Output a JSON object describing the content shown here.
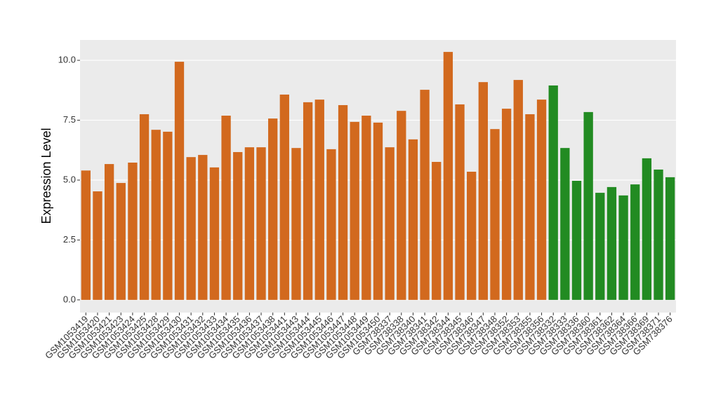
{
  "chart_data": {
    "type": "bar",
    "y_label": "Expression Level",
    "categories": [
      "GSM1053419",
      "GSM1053420",
      "GSM1053421",
      "GSM1053423",
      "GSM1053424",
      "GSM1053425",
      "GSM1053428",
      "GSM1053429",
      "GSM1053430",
      "GSM1053431",
      "GSM1053432",
      "GSM1053433",
      "GSM1053434",
      "GSM1053435",
      "GSM1053436",
      "GSM1053437",
      "GSM1053438",
      "GSM1053441",
      "GSM1053443",
      "GSM1053444",
      "GSM1053445",
      "GSM1053446",
      "GSM1053447",
      "GSM1053448",
      "GSM1053449",
      "GSM1053450",
      "GSM738337",
      "GSM738338",
      "GSM738340",
      "GSM738341",
      "GSM738342",
      "GSM738344",
      "GSM738345",
      "GSM738346",
      "GSM738347",
      "GSM738348",
      "GSM738352",
      "GSM738353",
      "GSM738355",
      "GSM738356",
      "GSM738332",
      "GSM738333",
      "GSM738336",
      "GSM738360",
      "GSM738361",
      "GSM738362",
      "GSM738364",
      "GSM738366",
      "GSM738369",
      "GSM738371",
      "GSM738376"
    ],
    "values": [
      5.4,
      4.53,
      5.67,
      4.88,
      5.73,
      7.75,
      7.1,
      7.02,
      9.94,
      5.96,
      6.05,
      5.53,
      7.69,
      6.17,
      6.37,
      6.37,
      7.57,
      8.57,
      6.34,
      8.25,
      8.36,
      6.29,
      8.13,
      7.43,
      7.69,
      7.4,
      6.37,
      7.89,
      6.7,
      8.77,
      5.76,
      10.35,
      8.16,
      5.35,
      9.09,
      7.13,
      7.98,
      9.18,
      7.75,
      8.36,
      8.95,
      6.34,
      4.97,
      7.84,
      4.47,
      4.71,
      4.36,
      4.82,
      5.91,
      5.44,
      5.12
    ],
    "colors": [
      "#d2691e",
      "#d2691e",
      "#d2691e",
      "#d2691e",
      "#d2691e",
      "#d2691e",
      "#d2691e",
      "#d2691e",
      "#d2691e",
      "#d2691e",
      "#d2691e",
      "#d2691e",
      "#d2691e",
      "#d2691e",
      "#d2691e",
      "#d2691e",
      "#d2691e",
      "#d2691e",
      "#d2691e",
      "#d2691e",
      "#d2691e",
      "#d2691e",
      "#d2691e",
      "#d2691e",
      "#d2691e",
      "#d2691e",
      "#d2691e",
      "#d2691e",
      "#d2691e",
      "#d2691e",
      "#d2691e",
      "#d2691e",
      "#d2691e",
      "#d2691e",
      "#d2691e",
      "#d2691e",
      "#d2691e",
      "#d2691e",
      "#d2691e",
      "#d2691e",
      "#228b22",
      "#228b22",
      "#228b22",
      "#228b22",
      "#228b22",
      "#228b22",
      "#228b22",
      "#228b22",
      "#228b22",
      "#228b22",
      "#228b22"
    ],
    "ylim": [
      -0.53,
      10.85
    ],
    "yticks": [
      {
        "value": 0,
        "label": "0.0"
      },
      2.5,
      {
        "value": 5,
        "label": "5.0"
      },
      7.5,
      {
        "value": 10,
        "label": "10.0"
      }
    ],
    "grid": true
  }
}
